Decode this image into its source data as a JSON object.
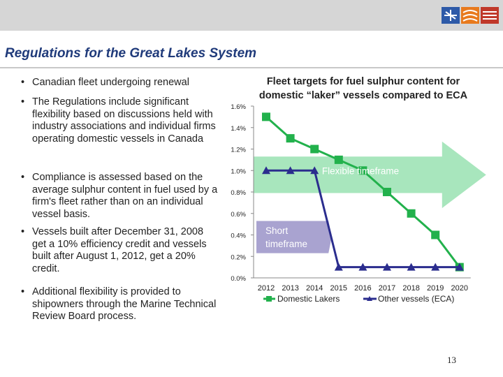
{
  "slide": {
    "title": "Regulations for the Great Lakes System",
    "page_number": "13"
  },
  "bullets": [
    "Canadian fleet undergoing renewal",
    "The Regulations include significant flexibility based on discussions held with industry associations and individual firms operating domestic vessels in Canada",
    "Compliance is assessed based on the average sulphur content in fuel used by a firm's fleet rather than on an individual vessel basis.",
    "Vessels built after December 31, 2008 get a 10% efficiency credit and vessels built after August 1, 2012, get a 20% credit.",
    "Additional flexibility is provided to shipowners through the Marine Technical Review Board process."
  ],
  "bullet_glyph": "•",
  "chart_data": {
    "type": "line",
    "title_lines": [
      "Fleet targets for fuel sulphur content for",
      "domestic “laker” vessels compared to ECA"
    ],
    "categories": [
      "2012",
      "2013",
      "2014",
      "2015",
      "2016",
      "2017",
      "2018",
      "2019",
      "2020"
    ],
    "series": [
      {
        "name": "Domestic Lakers",
        "values": [
          1.5,
          1.3,
          1.2,
          1.1,
          1.0,
          0.8,
          0.6,
          0.4,
          0.1
        ],
        "color": "#22b14c",
        "marker": "square"
      },
      {
        "name": "Other vessels (ECA)",
        "values": [
          1.0,
          1.0,
          1.0,
          0.1,
          0.1,
          0.1,
          0.1,
          0.1,
          0.1
        ],
        "color": "#2b2d8e",
        "marker": "triangle"
      }
    ],
    "y_ticks": [
      "0.0%",
      "0.2%",
      "0.4%",
      "0.6%",
      "0.8%",
      "1.0%",
      "1.2%",
      "1.4%",
      "1.6%"
    ],
    "ylim": [
      0,
      1.6
    ],
    "grid": false,
    "legend_position": "bottom",
    "annotations": {
      "flexible": "Flexible timeframe",
      "short_line1": "Short",
      "short_line2": "timeframe"
    }
  },
  "colors": {
    "title": "#1f3a7a",
    "arrow_green": "#a8e6bd",
    "arrow_purple": "#a9a3d0"
  }
}
